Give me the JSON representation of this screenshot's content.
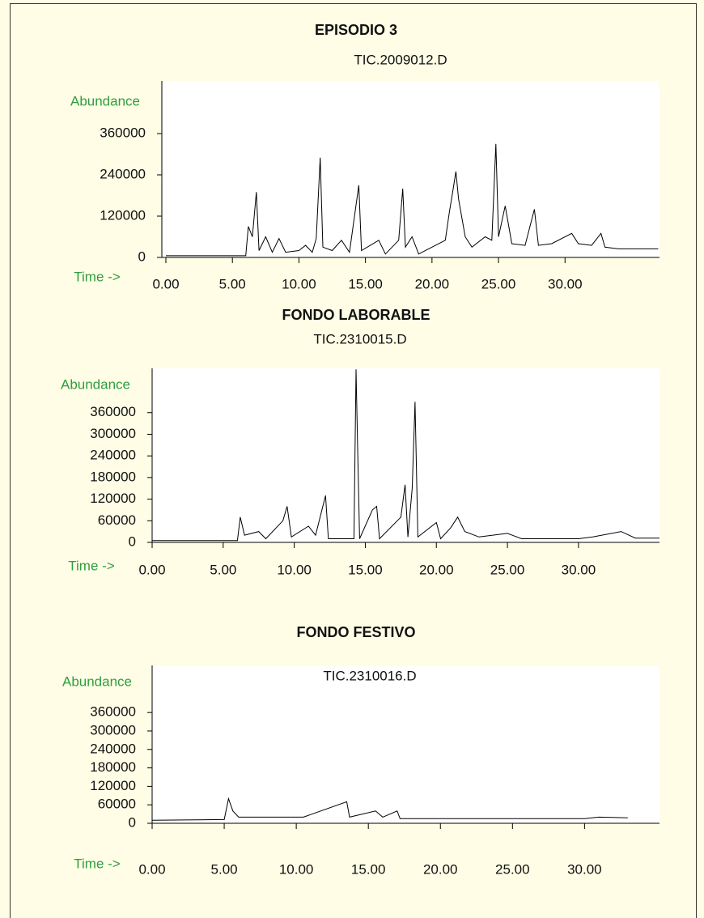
{
  "chart_data": [
    {
      "type": "line",
      "title": "EPISODIO 3",
      "subtitle": "TIC.2009012.D",
      "ylabel": "Abundance",
      "xlabel": "Time ->",
      "color": "#000000",
      "x": [
        0,
        6.0,
        6.2,
        6.5,
        6.8,
        7.0,
        7.5,
        8.0,
        8.5,
        9.0,
        10.0,
        10.5,
        11.0,
        11.3,
        11.6,
        11.8,
        12.5,
        13.2,
        13.8,
        14.5,
        14.7,
        16.0,
        16.5,
        17.5,
        17.8,
        18.0,
        18.5,
        19.0,
        20.0,
        21.0,
        21.3,
        21.6,
        21.8,
        22.0,
        22.5,
        23.0,
        24.0,
        24.5,
        24.8,
        25.0,
        25.5,
        26.0,
        27.0,
        27.7,
        28.0,
        29.0,
        30.5,
        31.0,
        32.0,
        32.7,
        33.0,
        34.0,
        37.0
      ],
      "values": [
        5000,
        5000,
        90000,
        60000,
        190000,
        20000,
        60000,
        15000,
        55000,
        15000,
        20000,
        35000,
        15000,
        55000,
        290000,
        30000,
        20000,
        50000,
        15000,
        210000,
        20000,
        50000,
        10000,
        50000,
        200000,
        30000,
        60000,
        10000,
        30000,
        50000,
        130000,
        200000,
        250000,
        170000,
        60000,
        30000,
        60000,
        50000,
        330000,
        60000,
        150000,
        40000,
        35000,
        140000,
        35000,
        40000,
        70000,
        40000,
        35000,
        70000,
        30000,
        25000,
        25000
      ],
      "xlim": [
        0,
        37.1
      ],
      "ylim": [
        0,
        513000
      ],
      "xticks": [
        {
          "value": 0,
          "label": "0.00"
        },
        {
          "value": 5,
          "label": "5.00"
        },
        {
          "value": 10,
          "label": "10.00"
        },
        {
          "value": 15,
          "label": "15.00"
        },
        {
          "value": 20,
          "label": "20.00"
        },
        {
          "value": 25,
          "label": "25.00"
        },
        {
          "value": 30,
          "label": "30.00"
        }
      ],
      "yticks": [
        0,
        120000,
        240000,
        360000
      ]
    },
    {
      "type": "line",
      "title": "FONDO LABORABLE",
      "subtitle": "TIC.2310015.D",
      "ylabel": "Abundance",
      "xlabel": "Time ->",
      "color": "#000000",
      "x": [
        0,
        6.0,
        6.2,
        6.5,
        7.5,
        8.0,
        9.2,
        9.5,
        9.8,
        11.0,
        11.5,
        12.2,
        12.4,
        14.2,
        14.35,
        14.45,
        14.6,
        15.5,
        15.8,
        16.0,
        17.5,
        17.8,
        18.0,
        18.3,
        18.5,
        18.7,
        20.0,
        20.3,
        21.0,
        21.5,
        22.0,
        23.0,
        25.0,
        26.0,
        30.0,
        31.0,
        33.0,
        34.0,
        35.7
      ],
      "values": [
        5000,
        5000,
        70000,
        20000,
        30000,
        10000,
        60000,
        100000,
        15000,
        45000,
        20000,
        130000,
        10000,
        10000,
        480000,
        280000,
        10000,
        90000,
        100000,
        10000,
        70000,
        160000,
        15000,
        150000,
        390000,
        15000,
        55000,
        10000,
        40000,
        70000,
        30000,
        15000,
        25000,
        10000,
        10000,
        15000,
        30000,
        12000,
        12000
      ],
      "xlim": [
        0,
        35.7
      ],
      "ylim": [
        0,
        483000
      ],
      "xticks": [
        {
          "value": 0,
          "label": "0.00"
        },
        {
          "value": 5,
          "label": "5.00"
        },
        {
          "value": 10,
          "label": "10.00"
        },
        {
          "value": 15,
          "label": "15.00"
        },
        {
          "value": 20,
          "label": "20.00"
        },
        {
          "value": 25,
          "label": "25.00"
        },
        {
          "value": 30,
          "label": "30.00"
        }
      ],
      "yticks": [
        0,
        60000,
        120000,
        180000,
        240000,
        300000,
        360000
      ]
    },
    {
      "type": "line",
      "title": "FONDO FESTIVO",
      "subtitle": "TIC.2310016.D",
      "ylabel": "Abundance",
      "xlabel": "Time ->",
      "color": "#000000",
      "x": [
        0,
        5.0,
        5.3,
        5.6,
        6.0,
        10.5,
        13.5,
        13.7,
        15.5,
        16.0,
        17.0,
        17.2,
        20.0,
        30.0,
        31.0,
        33.0
      ],
      "values": [
        10000,
        12000,
        80000,
        40000,
        20000,
        20000,
        70000,
        20000,
        40000,
        20000,
        40000,
        15000,
        15000,
        15000,
        20000,
        18000
      ],
      "xlim": [
        0,
        35.2
      ],
      "ylim": [
        0,
        513000
      ],
      "xticks": [
        {
          "value": 0,
          "label": "0.00"
        },
        {
          "value": 5,
          "label": "5.00"
        },
        {
          "value": 10,
          "label": "10.00"
        },
        {
          "value": 15,
          "label": "15.00"
        },
        {
          "value": 20,
          "label": "20.00"
        },
        {
          "value": 25,
          "label": "25.00"
        },
        {
          "value": 30,
          "label": "30.00"
        }
      ],
      "yticks": [
        0,
        60000,
        120000,
        180000,
        240000,
        300000,
        360000
      ]
    }
  ]
}
